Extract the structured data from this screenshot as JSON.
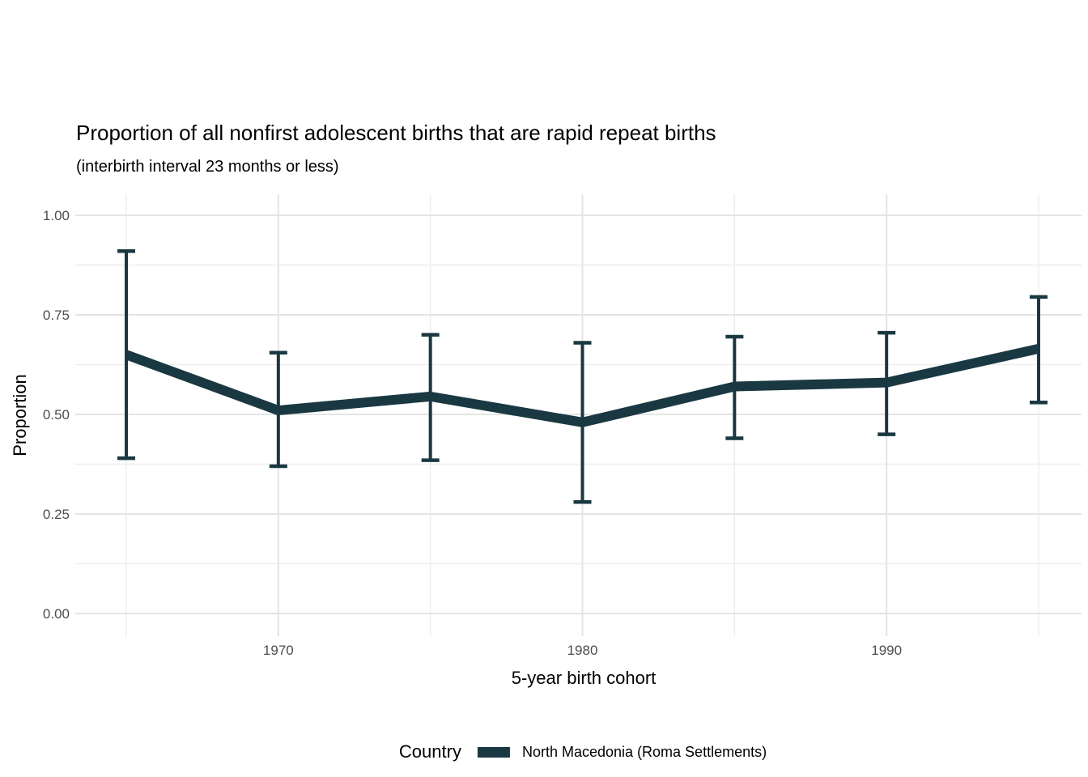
{
  "chart_data": {
    "type": "line",
    "title": "Proportion of all nonfirst adolescent births that are rapid repeat births",
    "subtitle": "(interbirth interval 23 months or less)",
    "xlabel": "5-year birth cohort",
    "ylabel": "Proportion",
    "x": [
      1965,
      1970,
      1975,
      1980,
      1985,
      1990,
      1995
    ],
    "series": [
      {
        "name": "North Macedonia (Roma Settlements)",
        "color": "#1a3842",
        "values": [
          0.65,
          0.51,
          0.545,
          0.48,
          0.57,
          0.58,
          0.665
        ],
        "ci_lower": [
          0.39,
          0.37,
          0.385,
          0.28,
          0.44,
          0.45,
          0.53
        ],
        "ci_upper": [
          0.91,
          0.655,
          0.7,
          0.68,
          0.695,
          0.705,
          0.795
        ]
      }
    ],
    "error_bars": true,
    "ylim": [
      0.0,
      1.0
    ],
    "y_ticks": [
      0.0,
      0.25,
      0.5,
      0.75,
      1.0
    ],
    "y_tick_labels": [
      "0.00",
      "0.25",
      "0.50",
      "0.75",
      "1.00"
    ],
    "y_minor_ticks": [
      0.125,
      0.375,
      0.625,
      0.875
    ],
    "x_ticks": [
      1970,
      1980,
      1990
    ],
    "x_tick_labels": [
      "1970",
      "1980",
      "1990"
    ],
    "x_minor_ticks": [
      1965,
      1975,
      1985,
      1995
    ],
    "grid": "on",
    "legend": {
      "position": "bottom",
      "title": "Country",
      "entries": [
        {
          "label": "North Macedonia (Roma Settlements)",
          "color": "#1a3842"
        }
      ]
    },
    "colors": {
      "line": "#1a3842",
      "grid_major": "#e4e4e4",
      "grid_minor": "#eeeeee",
      "tick_label": "#4d4d4d",
      "text": "#000000",
      "background": "#ffffff"
    }
  }
}
